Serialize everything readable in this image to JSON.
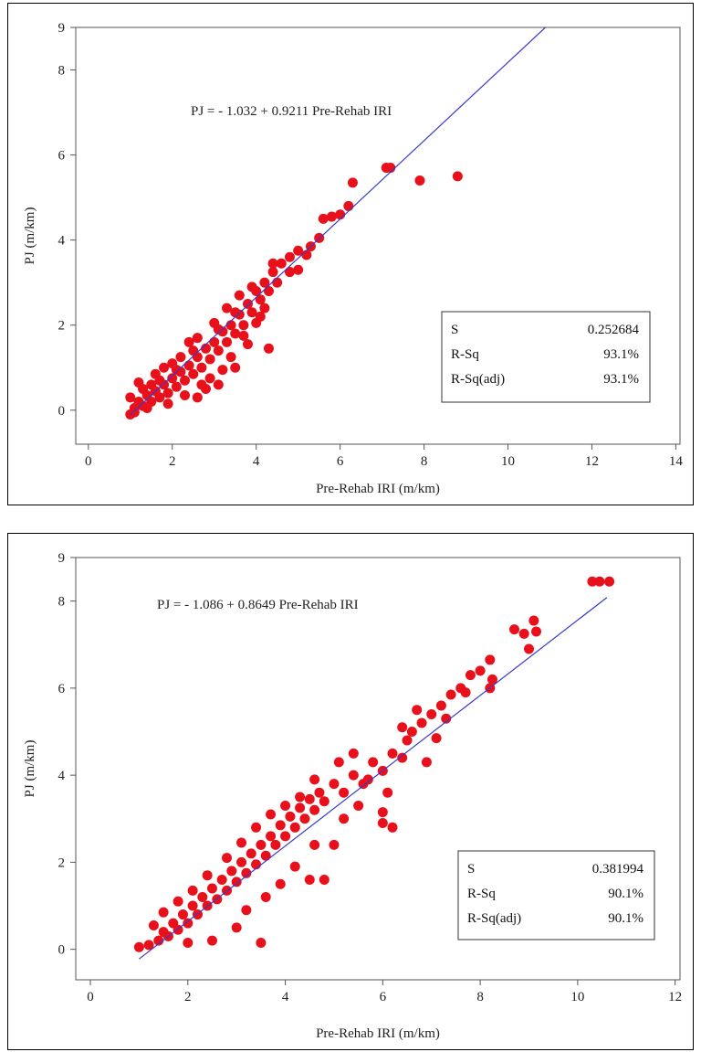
{
  "chart_data": [
    {
      "type": "scatter",
      "xlabel": "Pre-Rehab IRI (m/km)",
      "ylabel": "PJ (m/km)",
      "xlim": [
        -0.3,
        14.1
      ],
      "ylim": [
        -0.8,
        9
      ],
      "xticks": [
        0,
        2,
        4,
        6,
        8,
        10,
        12,
        14
      ],
      "yticks": [
        0,
        2,
        4,
        6,
        8,
        9
      ],
      "equation": "PJ =  - 1.032 + 0.9211 Pre-Rehab IRI",
      "fit_line": {
        "intercept": -1.032,
        "slope": 0.9211,
        "x_range": [
          1.0,
          10.9
        ]
      },
      "stats": [
        {
          "label": "S",
          "value": "0.252684"
        },
        {
          "label": "R-Sq",
          "value": "93.1%"
        },
        {
          "label": "R-Sq(adj)",
          "value": "93.1%"
        }
      ],
      "marker_color": "#e8101a",
      "line_color": "#3a3acc",
      "points": [
        [
          1.0,
          -0.1
        ],
        [
          1.1,
          0.05
        ],
        [
          1.2,
          0.2
        ],
        [
          1.3,
          0.1
        ],
        [
          1.4,
          0.35
        ],
        [
          1.5,
          0.2
        ],
        [
          1.6,
          0.45
        ],
        [
          1.7,
          0.3
        ],
        [
          1.8,
          0.6
        ],
        [
          1.9,
          0.4
        ],
        [
          2.0,
          0.75
        ],
        [
          2.1,
          0.55
        ],
        [
          2.2,
          0.9
        ],
        [
          2.3,
          0.7
        ],
        [
          2.4,
          1.05
        ],
        [
          2.5,
          0.85
        ],
        [
          2.6,
          1.25
        ],
        [
          2.7,
          1.0
        ],
        [
          2.8,
          1.45
        ],
        [
          2.9,
          1.2
        ],
        [
          3.0,
          1.6
        ],
        [
          3.1,
          1.4
        ],
        [
          3.2,
          1.85
        ],
        [
          3.3,
          1.6
        ],
        [
          3.4,
          2.0
        ],
        [
          3.5,
          1.8
        ],
        [
          3.6,
          2.25
        ],
        [
          3.7,
          2.0
        ],
        [
          3.8,
          2.5
        ],
        [
          3.9,
          2.3
        ],
        [
          4.0,
          2.8
        ],
        [
          4.1,
          2.6
        ],
        [
          4.2,
          3.0
        ],
        [
          4.3,
          2.8
        ],
        [
          4.4,
          3.25
        ],
        [
          4.6,
          3.45
        ],
        [
          4.8,
          3.6
        ],
        [
          5.0,
          3.75
        ],
        [
          5.2,
          3.65
        ],
        [
          5.3,
          3.85
        ],
        [
          5.5,
          4.05
        ],
        [
          5.6,
          4.5
        ],
        [
          5.8,
          4.55
        ],
        [
          6.0,
          4.6
        ],
        [
          6.2,
          4.8
        ],
        [
          6.3,
          5.35
        ],
        [
          7.1,
          5.7
        ],
        [
          7.2,
          5.7
        ],
        [
          7.9,
          5.4
        ],
        [
          8.8,
          5.5
        ],
        [
          4.3,
          1.45
        ],
        [
          3.1,
          0.6
        ],
        [
          2.8,
          0.5
        ],
        [
          3.5,
          1.0
        ],
        [
          2.6,
          0.3
        ],
        [
          1.5,
          0.6
        ],
        [
          1.3,
          0.5
        ],
        [
          1.6,
          0.85
        ],
        [
          2.0,
          1.1
        ],
        [
          2.4,
          1.6
        ],
        [
          2.6,
          1.7
        ],
        [
          3.0,
          2.05
        ],
        [
          3.3,
          2.4
        ],
        [
          3.6,
          2.7
        ],
        [
          4.4,
          3.45
        ],
        [
          4.8,
          3.25
        ],
        [
          5.0,
          3.3
        ],
        [
          1.2,
          0.65
        ],
        [
          1.8,
          1.0
        ],
        [
          2.2,
          1.25
        ],
        [
          2.9,
          0.75
        ],
        [
          3.8,
          1.55
        ],
        [
          4.1,
          2.2
        ],
        [
          1.0,
          0.3
        ],
        [
          1.1,
          -0.05
        ],
        [
          1.4,
          0.05
        ],
        [
          1.9,
          0.15
        ],
        [
          2.3,
          0.35
        ],
        [
          2.7,
          0.6
        ],
        [
          3.2,
          0.95
        ],
        [
          3.4,
          1.25
        ],
        [
          3.7,
          1.75
        ],
        [
          4.0,
          2.05
        ],
        [
          4.5,
          3.0
        ],
        [
          4.2,
          2.4
        ],
        [
          3.9,
          2.9
        ],
        [
          3.5,
          2.3
        ],
        [
          3.1,
          1.9
        ],
        [
          2.5,
          1.4
        ],
        [
          2.1,
          0.95
        ],
        [
          1.7,
          0.7
        ]
      ]
    },
    {
      "type": "scatter",
      "xlabel": "Pre-Rehab IRI (m/km)",
      "ylabel": "PJ (m/km)",
      "xlim": [
        -0.3,
        12.1
      ],
      "ylim": [
        -0.7,
        9
      ],
      "xticks": [
        0,
        2,
        4,
        6,
        8,
        10,
        12
      ],
      "yticks": [
        0,
        2,
        4,
        6,
        8,
        9
      ],
      "equation": "PJ =  - 1.086 + 0.8649 Pre-Rehab IRI",
      "fit_line": {
        "intercept": -1.086,
        "slope": 0.8649,
        "x_range": [
          1.0,
          10.6
        ]
      },
      "stats": [
        {
          "label": "S",
          "value": "0.381994"
        },
        {
          "label": "R-Sq",
          "value": "90.1%"
        },
        {
          "label": "R-Sq(adj)",
          "value": "90.1%"
        }
      ],
      "marker_color": "#e8101a",
      "line_color": "#3a3acc",
      "points": [
        [
          1.0,
          0.05
        ],
        [
          1.2,
          0.1
        ],
        [
          1.4,
          0.2
        ],
        [
          1.5,
          0.4
        ],
        [
          1.6,
          0.3
        ],
        [
          1.7,
          0.6
        ],
        [
          1.8,
          0.45
        ],
        [
          1.9,
          0.8
        ],
        [
          2.0,
          0.6
        ],
        [
          2.1,
          1.0
        ],
        [
          2.2,
          0.8
        ],
        [
          2.3,
          1.2
        ],
        [
          2.4,
          1.0
        ],
        [
          2.5,
          1.4
        ],
        [
          2.6,
          1.15
        ],
        [
          2.7,
          1.6
        ],
        [
          2.8,
          1.35
        ],
        [
          2.9,
          1.8
        ],
        [
          3.0,
          1.55
        ],
        [
          3.1,
          2.0
        ],
        [
          3.2,
          1.75
        ],
        [
          3.3,
          2.2
        ],
        [
          3.4,
          1.95
        ],
        [
          3.5,
          2.4
        ],
        [
          3.6,
          2.15
        ],
        [
          3.7,
          2.6
        ],
        [
          3.8,
          2.4
        ],
        [
          3.9,
          2.85
        ],
        [
          4.0,
          2.6
        ],
        [
          4.1,
          3.05
        ],
        [
          4.2,
          2.8
        ],
        [
          4.3,
          3.25
        ],
        [
          4.4,
          3.0
        ],
        [
          4.5,
          3.45
        ],
        [
          4.6,
          3.2
        ],
        [
          4.7,
          3.6
        ],
        [
          4.8,
          3.4
        ],
        [
          5.0,
          3.8
        ],
        [
          5.2,
          3.6
        ],
        [
          5.4,
          4.0
        ],
        [
          5.6,
          3.8
        ],
        [
          5.8,
          4.3
        ],
        [
          6.0,
          4.1
        ],
        [
          6.2,
          4.5
        ],
        [
          6.4,
          4.4
        ],
        [
          6.5,
          4.8
        ],
        [
          6.6,
          5.0
        ],
        [
          6.8,
          5.2
        ],
        [
          7.0,
          5.4
        ],
        [
          7.2,
          5.6
        ],
        [
          7.4,
          5.85
        ],
        [
          7.6,
          6.0
        ],
        [
          7.8,
          6.3
        ],
        [
          8.0,
          6.4
        ],
        [
          8.2,
          6.65
        ],
        [
          8.25,
          6.2
        ],
        [
          8.2,
          6.0
        ],
        [
          7.1,
          4.85
        ],
        [
          6.2,
          2.8
        ],
        [
          6.0,
          2.9
        ],
        [
          6.0,
          3.15
        ],
        [
          5.5,
          3.3
        ],
        [
          5.0,
          2.4
        ],
        [
          4.8,
          1.6
        ],
        [
          4.5,
          1.6
        ],
        [
          3.5,
          0.15
        ],
        [
          8.7,
          7.35
        ],
        [
          8.9,
          7.25
        ],
        [
          9.1,
          7.55
        ],
        [
          9.15,
          7.3
        ],
        [
          9.0,
          6.9
        ],
        [
          10.3,
          8.45
        ],
        [
          10.45,
          8.45
        ],
        [
          10.65,
          8.45
        ],
        [
          2.0,
          0.15
        ],
        [
          2.5,
          0.2
        ],
        [
          3.0,
          0.5
        ],
        [
          3.2,
          0.9
        ],
        [
          3.6,
          1.2
        ],
        [
          3.9,
          1.5
        ],
        [
          4.2,
          1.9
        ],
        [
          4.6,
          2.4
        ],
        [
          5.2,
          3.0
        ],
        [
          5.7,
          3.9
        ],
        [
          6.1,
          3.6
        ],
        [
          6.9,
          4.3
        ],
        [
          5.4,
          4.5
        ],
        [
          6.4,
          5.1
        ],
        [
          1.3,
          0.55
        ],
        [
          1.5,
          0.85
        ],
        [
          1.8,
          1.1
        ],
        [
          2.1,
          1.35
        ],
        [
          2.4,
          1.7
        ],
        [
          2.8,
          2.1
        ],
        [
          3.1,
          2.45
        ],
        [
          3.4,
          2.8
        ],
        [
          3.7,
          3.1
        ],
        [
          4.0,
          3.3
        ],
        [
          4.3,
          3.5
        ],
        [
          4.6,
          3.9
        ],
        [
          5.1,
          4.3
        ],
        [
          6.7,
          5.5
        ],
        [
          7.3,
          5.3
        ],
        [
          7.7,
          5.9
        ]
      ]
    }
  ]
}
